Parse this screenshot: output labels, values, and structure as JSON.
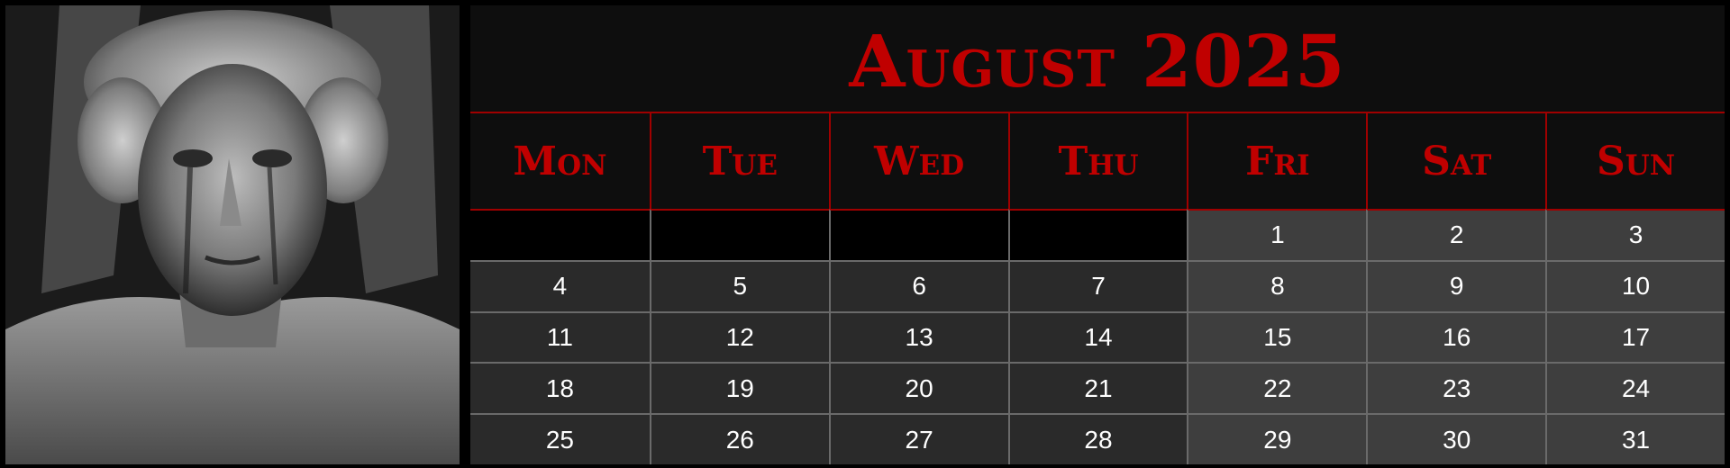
{
  "calendar": {
    "title": "August 2025",
    "weekdays": [
      "Mon",
      "Tue",
      "Wed",
      "Thu",
      "Fri",
      "Sat",
      "Sun"
    ],
    "weeks": [
      [
        "",
        "",
        "",
        "",
        "1",
        "2",
        "3"
      ],
      [
        "4",
        "5",
        "6",
        "7",
        "8",
        "9",
        "10"
      ],
      [
        "11",
        "12",
        "13",
        "14",
        "15",
        "16",
        "17"
      ],
      [
        "18",
        "19",
        "20",
        "21",
        "22",
        "23",
        "24"
      ],
      [
        "25",
        "26",
        "27",
        "28",
        "29",
        "30",
        "31"
      ]
    ]
  },
  "colors": {
    "accent": "#c00000",
    "background": "#0e0e0e",
    "weekday_cell": "#2a2a2a",
    "weekend_cell": "#3e3e3e"
  },
  "photo": {
    "subject": "statue-photo"
  }
}
